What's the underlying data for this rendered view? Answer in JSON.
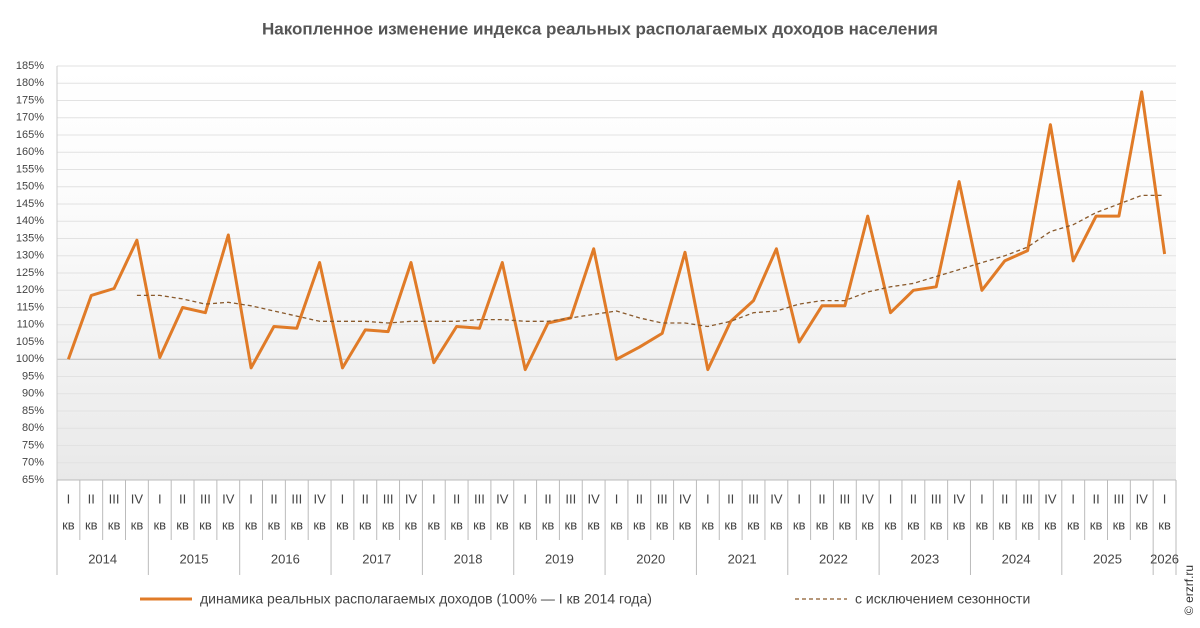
{
  "chart_data": {
    "type": "line",
    "title": "Накопленное изменение индекса реальных располагаемых доходов населения",
    "categories": [
      "I",
      "II",
      "III",
      "IV",
      "I",
      "II",
      "III",
      "IV",
      "I",
      "II",
      "III",
      "IV",
      "I",
      "II",
      "III",
      "IV",
      "I",
      "II",
      "III",
      "IV",
      "I",
      "II",
      "III",
      "IV",
      "I",
      "II",
      "III",
      "IV",
      "I",
      "II",
      "III",
      "IV",
      "I",
      "II",
      "III",
      "IV",
      "I",
      "II",
      "III",
      "IV",
      "I",
      "II",
      "III",
      "IV",
      "I",
      "II",
      "III",
      "IV",
      "I"
    ],
    "category_unit": "кв",
    "years": [
      "2014",
      "2015",
      "2016",
      "2017",
      "2018",
      "2019",
      "2020",
      "2021",
      "2022",
      "2023",
      "2024",
      "2025",
      "2026"
    ],
    "series": [
      {
        "name": "динамика реальных располагаемых доходов (100% — I кв 2014 года)",
        "color": "#e07b28",
        "style": "solid",
        "values": [
          100,
          118.5,
          120.5,
          134.5,
          100.5,
          115,
          113.5,
          136,
          97.5,
          109.5,
          109,
          128,
          97.5,
          108.5,
          108,
          128,
          99,
          109.5,
          109,
          128,
          97,
          110.5,
          112,
          132,
          100,
          103.5,
          107.5,
          131,
          97,
          111,
          117,
          132,
          105,
          115.5,
          115.5,
          141.5,
          113.5,
          120,
          121,
          151.5,
          120,
          128.5,
          131.5,
          168,
          128.5,
          141.5,
          141.5,
          177.5,
          130.5
        ]
      },
      {
        "name": "с исключением сезонности",
        "color": "#8a5a2c",
        "style": "dashed",
        "values": [
          null,
          null,
          null,
          118.5,
          118.5,
          117.5,
          116,
          116.5,
          115.5,
          114,
          112.5,
          111,
          111,
          111,
          110.5,
          111,
          111,
          111,
          111.5,
          111.5,
          111,
          111,
          112,
          113,
          114,
          112,
          110.5,
          110.5,
          109.5,
          111,
          113.5,
          114,
          116,
          117,
          117,
          119.5,
          121,
          122,
          124,
          126,
          128,
          130,
          132.5,
          137,
          139,
          142.5,
          145,
          147.5,
          147.5
        ]
      }
    ],
    "ylim": [
      65,
      185
    ],
    "yticks": [
      {
        "value": 65,
        "label": "65%"
      },
      {
        "value": 70,
        "label": "70%"
      },
      {
        "value": 75,
        "label": "75%"
      },
      {
        "value": 80,
        "label": "80%"
      },
      {
        "value": 85,
        "label": "85%"
      },
      {
        "value": 90,
        "label": "90%"
      },
      {
        "value": 95,
        "label": "95%"
      },
      {
        "value": 100,
        "label": "100%"
      },
      {
        "value": 105,
        "label": "105%"
      },
      {
        "value": 110,
        "label": "110%"
      },
      {
        "value": 115,
        "label": "115%"
      },
      {
        "value": 120,
        "label": "120%"
      },
      {
        "value": 125,
        "label": "125%"
      },
      {
        "value": 130,
        "label": "130%"
      },
      {
        "value": 135,
        "label": "135%"
      },
      {
        "value": 140,
        "label": "140%"
      },
      {
        "value": 145,
        "label": "145%"
      },
      {
        "value": 150,
        "label": "150%"
      },
      {
        "value": 155,
        "label": "155%"
      },
      {
        "value": 160,
        "label": "160%"
      },
      {
        "value": 165,
        "label": "165%"
      },
      {
        "value": 170,
        "label": "170%"
      },
      {
        "value": 175,
        "label": "175%"
      },
      {
        "value": 180,
        "label": "180%"
      },
      {
        "value": 185,
        "label": "185%"
      }
    ],
    "grid": true
  },
  "watermark": "© erzrf.ru"
}
